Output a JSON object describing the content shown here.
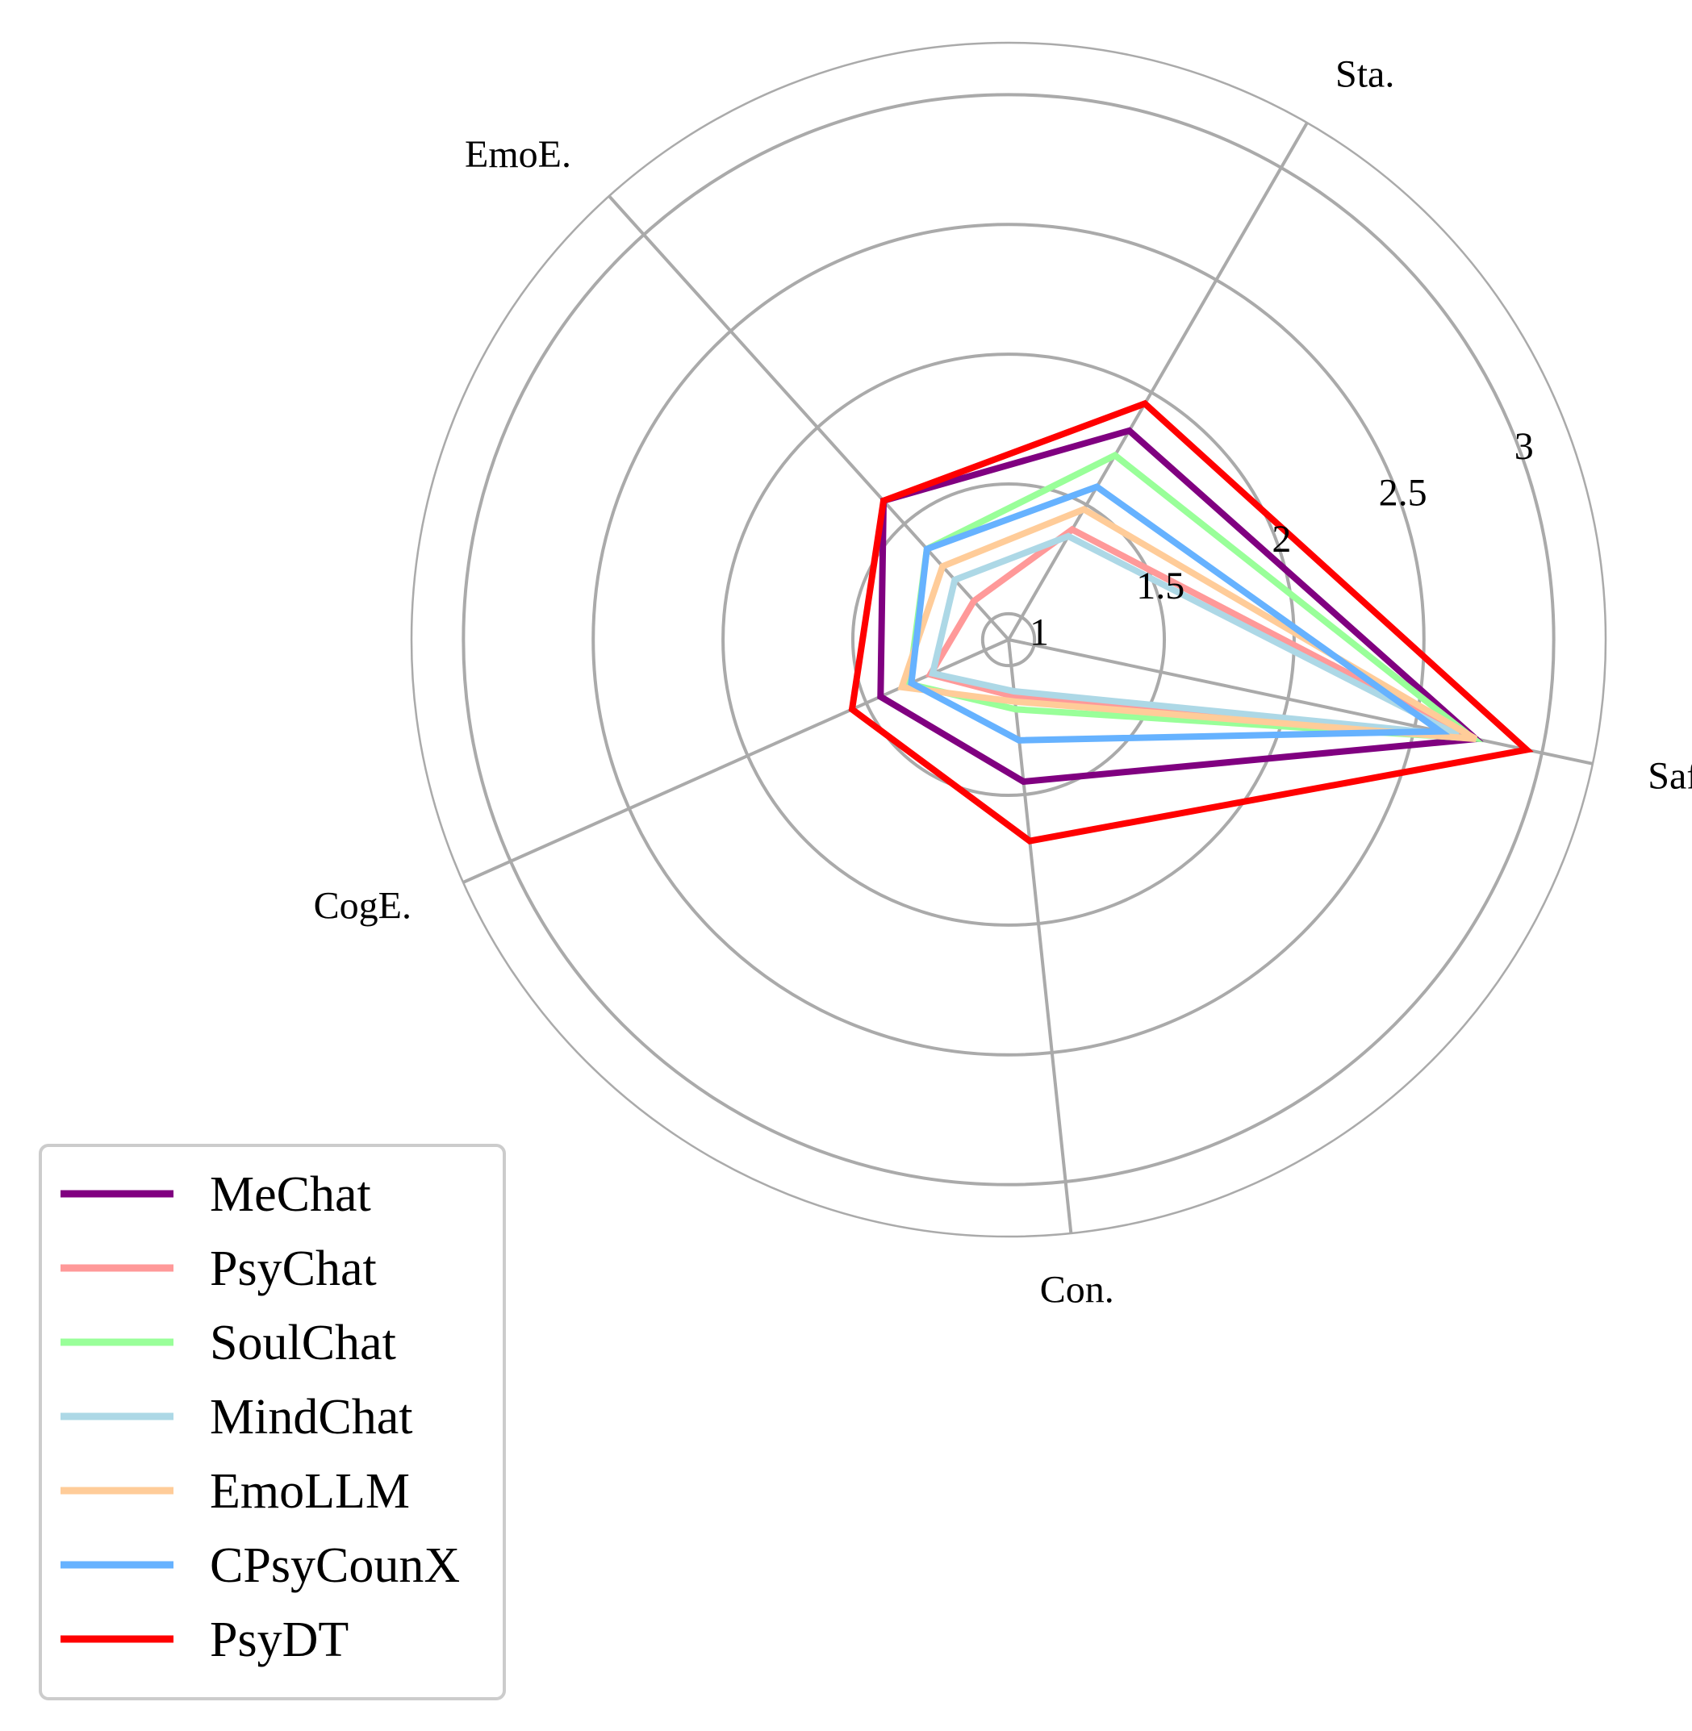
{
  "chart_data": {
    "type": "radar",
    "axes": [
      "Saf.",
      "Sta.",
      "EmoE.",
      "CogE.",
      "Con."
    ],
    "r_ticks": [
      1,
      1.5,
      2,
      2.5,
      3
    ],
    "r_tick_labels": [
      "1",
      "1.5",
      "2",
      "2.5",
      "3"
    ],
    "rlim": [
      0.9,
      3.2
    ],
    "grid": true,
    "legend_position": "lower-left",
    "series": [
      {
        "name": "MeChat",
        "color": "#800080",
        "values": [
          2.74,
          1.83,
          1.62,
          1.44,
          1.45
        ]
      },
      {
        "name": "PsyChat",
        "color": "#FF9999",
        "values": [
          2.73,
          1.39,
          1.1,
          1.23,
          1.12
        ]
      },
      {
        "name": "SoulChat",
        "color": "#99FF99",
        "values": [
          2.73,
          1.72,
          1.37,
          1.32,
          1.17
        ]
      },
      {
        "name": "MindChat",
        "color": "#ADD8E6",
        "values": [
          2.67,
          1.36,
          1.21,
          1.22,
          1.1
        ]
      },
      {
        "name": "EmoLLM",
        "color": "#FFCC99",
        "values": [
          2.74,
          1.48,
          1.28,
          1.35,
          1.14
        ]
      },
      {
        "name": "CPsyCounX",
        "color": "#66B2FF",
        "values": [
          2.6,
          1.58,
          1.37,
          1.31,
          1.29
        ]
      },
      {
        "name": "PsyDT",
        "color": "#FF0000",
        "values": [
          2.94,
          1.95,
          1.62,
          1.56,
          1.68
        ]
      }
    ]
  }
}
